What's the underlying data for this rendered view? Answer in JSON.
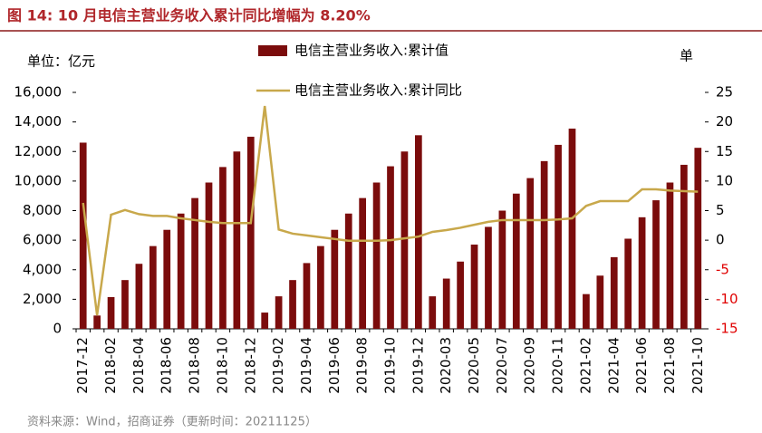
{
  "chart_data": {
    "type": "bar_line",
    "title": "图 14:  10 月电信主营业务收入累计同比增幅为 8.20%",
    "y_unit_label": "单位：亿元",
    "y2_unit_label": "单",
    "source": "资料来源：Wind，招商证券（更新时间：20211125）",
    "categories": [
      "2017-12",
      null,
      "2018-02",
      null,
      "2018-04",
      null,
      "2018-06",
      null,
      "2018-08",
      null,
      "2018-10",
      null,
      "2018-12",
      null,
      "2019-02",
      null,
      "2019-04",
      null,
      "2019-06",
      null,
      "2019-08",
      null,
      "2019-10",
      null,
      "2019-12",
      null,
      "2020-03",
      null,
      "2020-05",
      null,
      "2020-07",
      null,
      "2020-09",
      null,
      "2020-11",
      null,
      "2021-02",
      null,
      "2021-04",
      null,
      "2021-06",
      null,
      "2021-08",
      null,
      "2021-10"
    ],
    "series": [
      {
        "name": "电信主营业务收入:累计值",
        "color": "#7b0c0c",
        "kind": "bar",
        "values": [
          12600,
          900,
          2150,
          3300,
          4400,
          5600,
          6700,
          7800,
          8850,
          9900,
          10950,
          12000,
          13000,
          1100,
          2200,
          3300,
          4450,
          5600,
          6700,
          7800,
          8850,
          9900,
          11000,
          12000,
          13100,
          2200,
          3400,
          4550,
          5700,
          6900,
          8000,
          9150,
          10200,
          11350,
          12450,
          13550,
          2350,
          3600,
          4850,
          6100,
          7550,
          8700,
          9900,
          11100,
          12250
        ]
      },
      {
        "name": "电信主营业务收入:累计同比",
        "color": "#c8a84b",
        "kind": "line",
        "axis": "y2",
        "values": [
          6.3,
          -12.7,
          4.3,
          5.1,
          4.4,
          4.1,
          4.1,
          3.7,
          3.4,
          3.1,
          2.9,
          2.9,
          2.9,
          22.7,
          1.8,
          1.1,
          0.8,
          0.5,
          0.2,
          -0.1,
          -0.1,
          -0.1,
          0,
          0.3,
          0.6,
          1.4,
          1.7,
          2.1,
          2.6,
          3.1,
          3.4,
          3.4,
          3.4,
          3.4,
          3.5,
          3.7,
          5.8,
          6.6,
          6.6,
          6.6,
          8.6,
          8.6,
          8.4,
          8.3,
          8.2
        ]
      }
    ],
    "ylim": [
      0,
      16000
    ],
    "yticks": [
      {
        "value": 0,
        "label": "0"
      },
      {
        "value": 2000,
        "label": "2,000"
      },
      {
        "value": 4000,
        "label": "4,000"
      },
      {
        "value": 6000,
        "label": "6,000"
      },
      {
        "value": 8000,
        "label": "8,000"
      },
      {
        "value": 10000,
        "label": "10,000"
      },
      {
        "value": 12000,
        "label": "12,000"
      },
      {
        "value": 14000,
        "label": "14,000"
      },
      {
        "value": 16000,
        "label": "16,000"
      }
    ],
    "y2lim": [
      -15,
      25
    ],
    "y2ticks": [
      -15,
      -10,
      -5,
      0,
      5,
      10,
      15,
      20,
      25
    ],
    "y2_negative_tick_color": "#e00000"
  }
}
